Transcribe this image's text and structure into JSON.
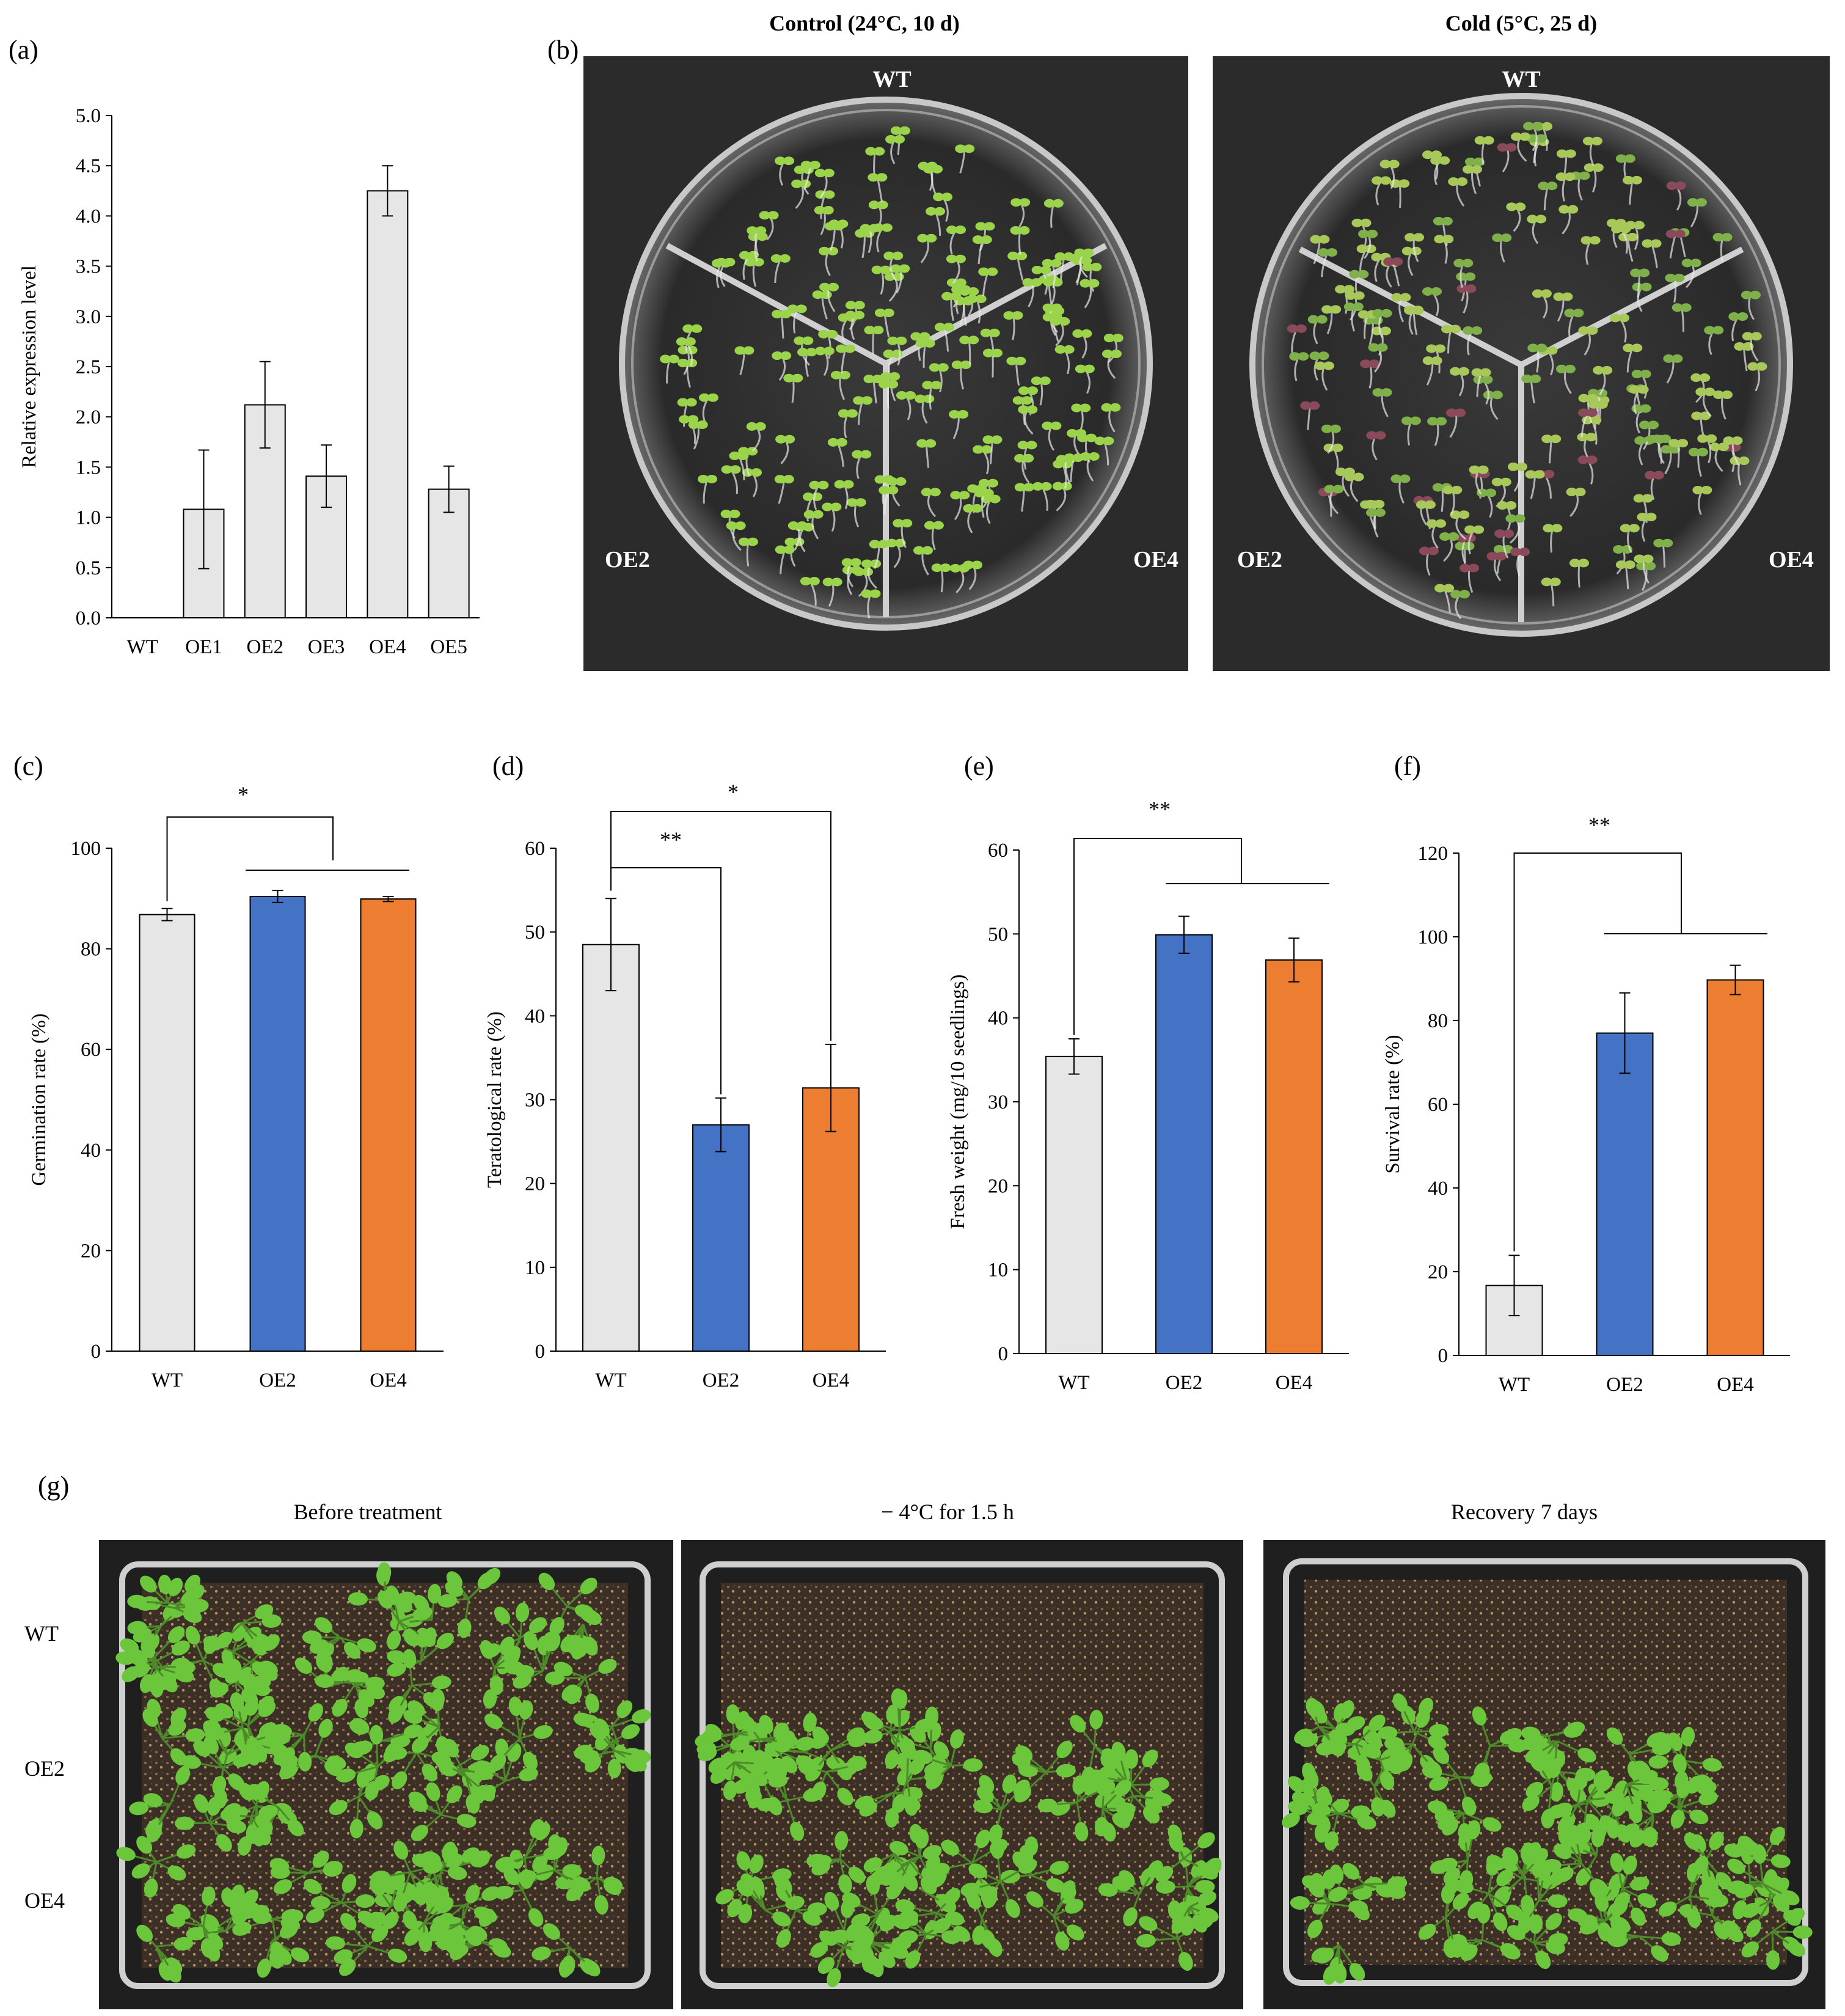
{
  "panels": {
    "a": "(a)",
    "b": "(b)",
    "c": "(c)",
    "d": "(d)",
    "e": "(e)",
    "f": "(f)",
    "g": "(g)"
  },
  "photos_b": {
    "left_title": "Control (24°C, 10 d)",
    "right_title": "Cold (5°C, 25 d)",
    "sector_labels": [
      "WT",
      "OE2",
      "OE4"
    ]
  },
  "photos_g": {
    "col_titles": [
      "Before treatment",
      "− 4°C for 1.5 h",
      "Recovery 7 days"
    ],
    "row_labels": [
      "WT",
      "OE2",
      "OE4"
    ]
  },
  "colors": {
    "gray": "#e6e6e6",
    "blue": "#4472c4",
    "orange": "#ed7d31"
  },
  "chart_data": [
    {
      "id": "a",
      "type": "bar",
      "categories": [
        "WT",
        "OE1",
        "OE2",
        "OE3",
        "OE4",
        "OE5"
      ],
      "values": [
        0,
        1.08,
        2.12,
        1.41,
        4.25,
        1.28
      ],
      "errors": [
        0,
        0.59,
        0.43,
        0.31,
        0.25,
        0.23
      ],
      "ylabel": "Relative expression level",
      "ylim": [
        0,
        5.0
      ],
      "yticks": [
        "0.0",
        "0.5",
        "1.0",
        "1.5",
        "2.0",
        "2.5",
        "3.0",
        "3.5",
        "4.0",
        "4.5",
        "5.0"
      ],
      "colors": [
        "gray",
        "gray",
        "gray",
        "gray",
        "gray",
        "gray"
      ]
    },
    {
      "id": "c",
      "type": "bar",
      "categories": [
        "WT",
        "OE2",
        "OE4"
      ],
      "values": [
        86.8,
        90.4,
        89.9
      ],
      "errors": [
        1.2,
        1.2,
        0.5
      ],
      "ylabel": "Germination rate (%)",
      "ylim": [
        0,
        100
      ],
      "yticks": [
        "0",
        "20",
        "40",
        "60",
        "80",
        "100"
      ],
      "colors": [
        "gray",
        "blue",
        "orange"
      ],
      "significance": [
        "*"
      ]
    },
    {
      "id": "d",
      "type": "bar",
      "categories": [
        "WT",
        "OE2",
        "OE4"
      ],
      "values": [
        48.5,
        27.0,
        31.4
      ],
      "errors": [
        5.5,
        3.2,
        5.2
      ],
      "ylabel": "Teratological rate (%)",
      "ylim": [
        0,
        60
      ],
      "yticks": [
        "0",
        "10",
        "20",
        "30",
        "40",
        "50",
        "60"
      ],
      "colors": [
        "gray",
        "blue",
        "orange"
      ],
      "significance": [
        "**",
        "*"
      ]
    },
    {
      "id": "e",
      "type": "bar",
      "categories": [
        "WT",
        "OE2",
        "OE4"
      ],
      "values": [
        35.4,
        49.9,
        46.9
      ],
      "errors": [
        2.1,
        2.2,
        2.6
      ],
      "ylabel": "Fresh weight (mg/10 seedlings)",
      "ylim": [
        0,
        60
      ],
      "yticks": [
        "0",
        "10",
        "20",
        "30",
        "40",
        "50",
        "60"
      ],
      "colors": [
        "gray",
        "blue",
        "orange"
      ],
      "significance": [
        "**"
      ]
    },
    {
      "id": "f",
      "type": "bar",
      "categories": [
        "WT",
        "OE2",
        "OE4"
      ],
      "values": [
        16.7,
        77.0,
        89.7
      ],
      "errors": [
        7.2,
        9.6,
        3.5
      ],
      "ylabel": "Survival rate (%)",
      "ylim": [
        0,
        120
      ],
      "yticks": [
        "0",
        "20",
        "40",
        "60",
        "80",
        "100",
        "120"
      ],
      "colors": [
        "gray",
        "blue",
        "orange"
      ],
      "significance": [
        "**"
      ]
    }
  ]
}
